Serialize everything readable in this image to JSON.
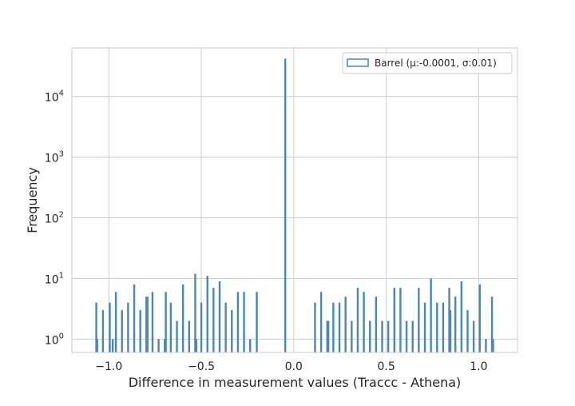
{
  "colors": {
    "series": "#4c86b4",
    "grid": "#cccccc",
    "frame": "#cccccc",
    "text": "#262626"
  },
  "chart_data": {
    "type": "histogram",
    "title": "",
    "xlabel": "Difference in measurement values (Traccc - Athena)",
    "ylabel": "Frequency",
    "xlim": [
      -1.2,
      1.21
    ],
    "ylim_log10": [
      -0.22,
      4.8
    ],
    "yscale": "log",
    "grid": true,
    "legend": {
      "placement": "top-right",
      "entries": [
        "Barrel (μ:-0.0001, σ:0.01)"
      ]
    },
    "x_ticks": [
      {
        "value": -1.0,
        "label": "−1.0"
      },
      {
        "value": -0.5,
        "label": "−0.5"
      },
      {
        "value": 0.0,
        "label": "0.0"
      },
      {
        "value": 0.5,
        "label": "0.5"
      },
      {
        "value": 1.0,
        "label": "1.0"
      }
    ],
    "y_ticks": [
      {
        "value": 1,
        "base": "10",
        "exp": "0"
      },
      {
        "value": 10,
        "base": "10",
        "exp": "1"
      },
      {
        "value": 100,
        "base": "10",
        "exp": "2"
      },
      {
        "value": 1000,
        "base": "10",
        "exp": "3"
      },
      {
        "value": 10000,
        "base": "10",
        "exp": "4"
      }
    ],
    "series": [
      {
        "name": "Barrel (μ:-0.0001, σ:0.01)",
        "x": [
          -1.068,
          -1.063,
          -1.032,
          -0.995,
          -0.979,
          -0.962,
          -0.929,
          -0.896,
          -0.863,
          -0.83,
          -0.797,
          -0.791,
          -0.764,
          -0.731,
          -0.698,
          -0.692,
          -0.665,
          -0.632,
          -0.599,
          -0.566,
          -0.533,
          -0.527,
          -0.5,
          -0.467,
          -0.434,
          -0.401,
          -0.368,
          -0.335,
          -0.302,
          -0.269,
          -0.236,
          -0.2,
          -0.046,
          0.115,
          0.148,
          0.181,
          0.187,
          0.214,
          0.247,
          0.28,
          0.313,
          0.346,
          0.379,
          0.412,
          0.445,
          0.478,
          0.511,
          0.544,
          0.577,
          0.61,
          0.643,
          0.676,
          0.709,
          0.742,
          0.775,
          0.808,
          0.841,
          0.847,
          0.874,
          0.907,
          0.94,
          0.973,
          1.006,
          1.039,
          1.072,
          1.078
        ],
        "values": [
          4,
          1,
          3,
          4,
          1,
          6,
          3,
          4,
          8,
          3,
          5,
          5,
          6,
          1,
          1,
          6,
          4,
          2,
          8,
          2,
          12,
          1,
          4,
          11,
          7,
          9,
          4,
          3,
          6,
          6,
          1,
          6,
          42000,
          4,
          6,
          2,
          2,
          4,
          4,
          5,
          2,
          7,
          6,
          2,
          5,
          2,
          2,
          7,
          7,
          2,
          2,
          7,
          4,
          10,
          4,
          4,
          7,
          3,
          5,
          9,
          3,
          2,
          8,
          1,
          5,
          1
        ]
      }
    ]
  }
}
